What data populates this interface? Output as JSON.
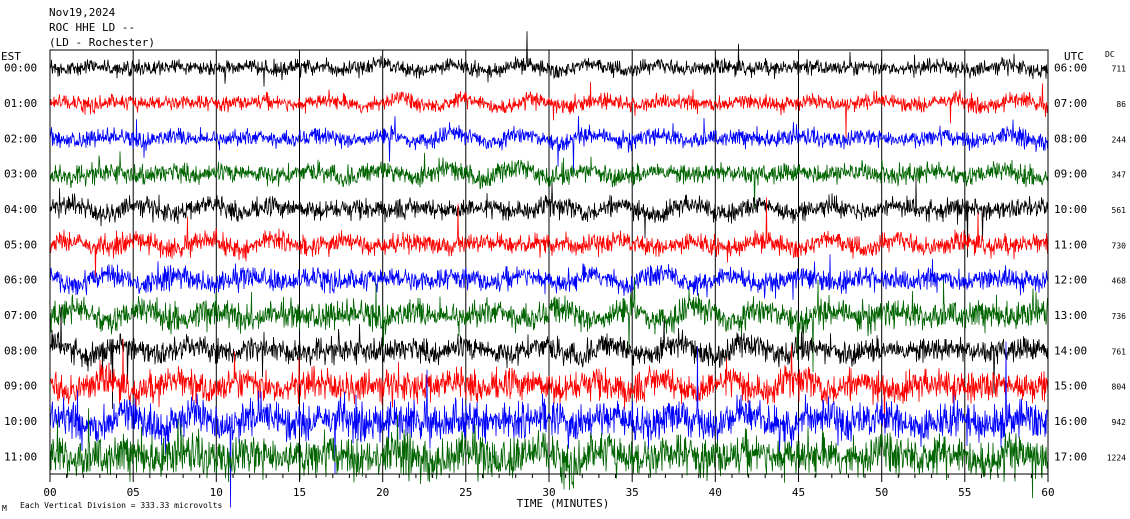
{
  "header": {
    "date": "Nov19,2024",
    "station": "ROC HHE LD --",
    "location": "(LD - Rochester)"
  },
  "left_zone_label": "EST",
  "right_zone_label": "UTC",
  "dc_label": "DC",
  "x_axis_title": "TIME (MINUTES)",
  "footer_note": "Each Vertical Division = 333.33 microvolts",
  "corner_mark": "M",
  "colors": {
    "black": "#000000",
    "red": "#ff0000",
    "blue": "#0000ff",
    "green": "#006400"
  },
  "chart_data": {
    "type": "line",
    "subtype": "helicorder",
    "xlabel": "TIME (MINUTES)",
    "xlim": [
      0,
      60
    ],
    "x_ticks": [
      "00",
      "05",
      "10",
      "15",
      "20",
      "25",
      "30",
      "35",
      "40",
      "45",
      "50",
      "55",
      "60"
    ],
    "color_cycle": [
      "black",
      "red",
      "blue",
      "green"
    ],
    "traces": [
      {
        "est": "00:00",
        "utc": "06:00",
        "dc": "711",
        "color": "black",
        "amplitude": 1.0
      },
      {
        "est": "01:00",
        "utc": "07:00",
        "dc": "86",
        "color": "red",
        "amplitude": 1.0
      },
      {
        "est": "02:00",
        "utc": "08:00",
        "dc": "244",
        "color": "blue",
        "amplitude": 1.1
      },
      {
        "est": "03:00",
        "utc": "09:00",
        "dc": "347",
        "color": "green",
        "amplitude": 1.3
      },
      {
        "est": "04:00",
        "utc": "10:00",
        "dc": "561",
        "color": "black",
        "amplitude": 1.3
      },
      {
        "est": "05:00",
        "utc": "11:00",
        "dc": "730",
        "color": "red",
        "amplitude": 1.3
      },
      {
        "est": "06:00",
        "utc": "12:00",
        "dc": "468",
        "color": "blue",
        "amplitude": 1.4
      },
      {
        "est": "07:00",
        "utc": "13:00",
        "dc": "736",
        "color": "green",
        "amplitude": 1.8
      },
      {
        "est": "08:00",
        "utc": "14:00",
        "dc": "761",
        "color": "black",
        "amplitude": 1.6
      },
      {
        "est": "09:00",
        "utc": "15:00",
        "dc": "804",
        "color": "red",
        "amplitude": 2.0
      },
      {
        "est": "10:00",
        "utc": "16:00",
        "dc": "942",
        "color": "blue",
        "amplitude": 2.4
      },
      {
        "est": "11:00",
        "utc": "17:00",
        "dc": "1224",
        "color": "green",
        "amplitude": 2.6
      }
    ]
  }
}
